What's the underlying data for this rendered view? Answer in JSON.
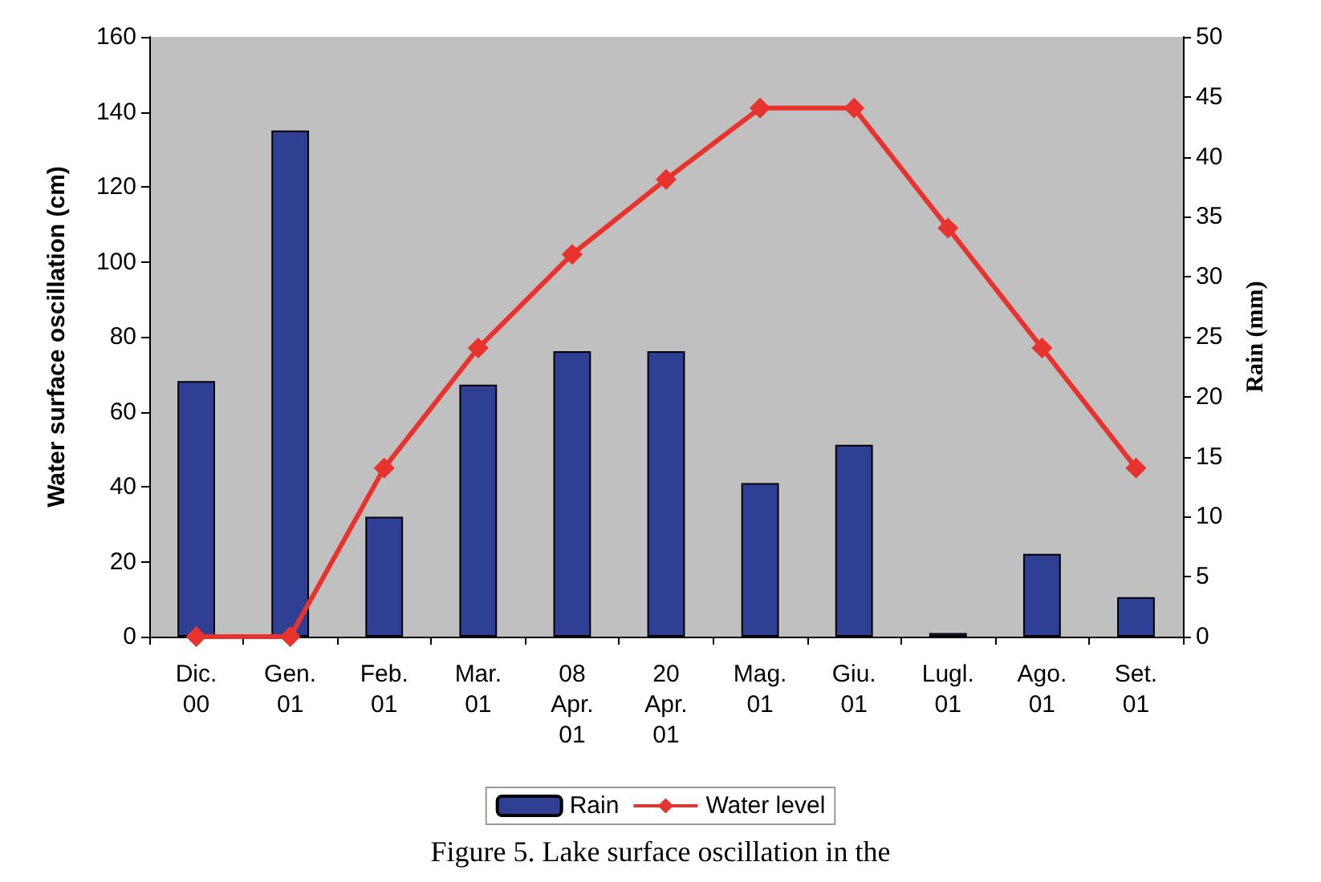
{
  "chart_data": {
    "type": "bar",
    "categories": [
      "Dic.\n00",
      "Gen.\n01",
      "Feb.\n01",
      "Mar.\n01",
      "08\nApr.\n01",
      "20\nApr.\n01",
      "Mag.\n01",
      "Giu.\n01",
      "Lugl.\n01",
      "Ago.\n01",
      "Set.\n01"
    ],
    "ylabel": "Water surface oscillation (cm)",
    "y2label": "Rain (mm)",
    "ylim": [
      0,
      160
    ],
    "yticks": [
      0,
      20,
      40,
      60,
      80,
      100,
      120,
      140,
      160
    ],
    "y2lim": [
      0,
      50
    ],
    "y2ticks": [
      0,
      5,
      10,
      15,
      20,
      25,
      30,
      35,
      40,
      45,
      50
    ],
    "series": [
      {
        "name": "Rain",
        "axis": "y2",
        "color": "#2e3f94",
        "values": [
          21.3,
          42.2,
          10,
          21,
          23.8,
          23.8,
          12.8,
          16,
          0.3,
          6.9,
          3.3
        ]
      },
      {
        "name": "Water level",
        "type": "line",
        "color": "#e8322d",
        "marker": "diamond",
        "values": [
          0,
          0,
          45,
          77,
          102,
          122,
          141,
          141,
          109,
          77,
          45
        ]
      }
    ],
    "grid": false,
    "legend": "bottom",
    "annotations": [
      "Figure 5. Lake surface oscillation in the"
    ]
  }
}
